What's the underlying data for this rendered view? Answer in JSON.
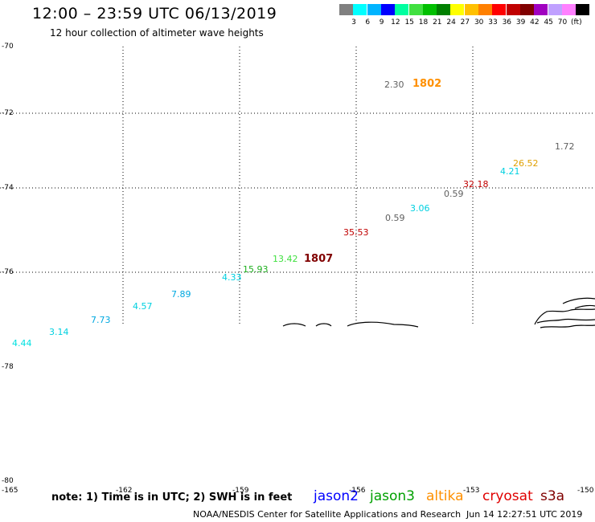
{
  "header": {
    "title": "12:00 – 23:59 UTC 06/13/2019",
    "subtitle": "12 hour collection of altimeter wave heights"
  },
  "legend": {
    "colors": [
      "#808080",
      "#00ffff",
      "#00b4ff",
      "#0000ff",
      "#00ffa0",
      "#40e040",
      "#00c000",
      "#008000",
      "#ffff00",
      "#ffc000",
      "#ff8000",
      "#ff0000",
      "#c00000",
      "#800000",
      "#a000c0",
      "#c0a0ff",
      "#ff80ff",
      "#000000"
    ],
    "labels": [
      "3",
      "6",
      "9",
      "12",
      "15",
      "18",
      "21",
      "24",
      "27",
      "30",
      "33",
      "36",
      "39",
      "42",
      "45",
      "70",
      "(ft)"
    ]
  },
  "axes": {
    "lat_labels": [
      "-70",
      "-72",
      "-74",
      "-76",
      "-78",
      "-80"
    ],
    "lon_labels": [
      "-165",
      "-162",
      "-159",
      "-156",
      "-153",
      "-150"
    ]
  },
  "measurements": [
    {
      "value": "4.44",
      "color": "#00e0e0"
    },
    {
      "value": "3.14",
      "color": "#00d0e0"
    },
    {
      "value": "7.73",
      "color": "#00a8e0"
    },
    {
      "value": "4.57",
      "color": "#00d0e0"
    },
    {
      "value": "7.89",
      "color": "#00a8e0"
    },
    {
      "value": "4.33",
      "color": "#00d0e0"
    },
    {
      "value": "15.93",
      "color": "#20b020"
    },
    {
      "value": "13.42",
      "color": "#40e040"
    },
    {
      "value": "35.53",
      "color": "#c00000"
    },
    {
      "value": "0.59",
      "color": "#606060"
    },
    {
      "value": "3.06",
      "color": "#00d0e0"
    },
    {
      "value": "0.59",
      "color": "#606060"
    },
    {
      "value": "32.18",
      "color": "#c00000"
    },
    {
      "value": "4.21",
      "color": "#00d0e0"
    },
    {
      "value": "26.52",
      "color": "#e0a000"
    },
    {
      "value": "1.72",
      "color": "#606060"
    },
    {
      "value": "2.30",
      "color": "#606060"
    }
  ],
  "times": [
    {
      "value": "1802",
      "color": "#ff9000"
    },
    {
      "value": "1807",
      "color": "#800000"
    }
  ],
  "footer": {
    "note": "note:  1) Time is in UTC;  2) SWH is in feet",
    "satellites": [
      {
        "name": "jason2",
        "color": "#0000ff"
      },
      {
        "name": "jason3",
        "color": "#00a000"
      },
      {
        "name": "altika",
        "color": "#ff9000"
      },
      {
        "name": "cryosat",
        "color": "#e00000"
      },
      {
        "name": "s3a",
        "color": "#800000"
      }
    ],
    "credit": "NOAA/NESDIS Center for Satellite Applications and Research",
    "timestamp": "Jun 14 12:27:51 UTC 2019"
  }
}
